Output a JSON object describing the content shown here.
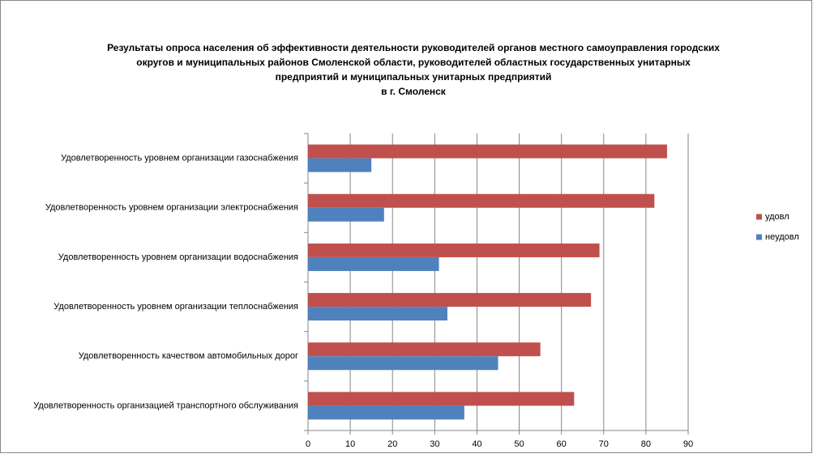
{
  "chart_data": {
    "type": "hbar",
    "title": [
      "Результаты опроса населения об эффективности деятельности руководителей органов местного самоуправления городских",
      "округов и муниципальных районов Смоленской области, руководителей областных государственных унитарных",
      "предприятий и муниципальных унитарных предприятий",
      "в г. Смоленск"
    ],
    "categories": [
      "Удовлетворенность  уровнем  организации газоснабжения",
      "Удовлетворенность  уровнем  организации электроснабжения",
      "Удовлетворенность  уровнем  организации водоснабжения",
      "Удовлетворенность  уровнем  организации теплоснабжения",
      "Удовлетворенность  качеством  автомобильных дорог",
      "Удовлетворенность  организацией  транспортного обслуживания"
    ],
    "series": [
      {
        "name": "удовл",
        "color": "#c0504d",
        "values": [
          85,
          82,
          69,
          67,
          55,
          63
        ]
      },
      {
        "name": "неудовл",
        "color": "#4f81bd",
        "values": [
          15,
          18,
          31,
          33,
          45,
          37
        ]
      }
    ],
    "xlim": [
      0,
      90
    ],
    "xticks": [
      0,
      10,
      20,
      30,
      40,
      50,
      60,
      70,
      80,
      90
    ],
    "grid": true,
    "legend": "right"
  }
}
